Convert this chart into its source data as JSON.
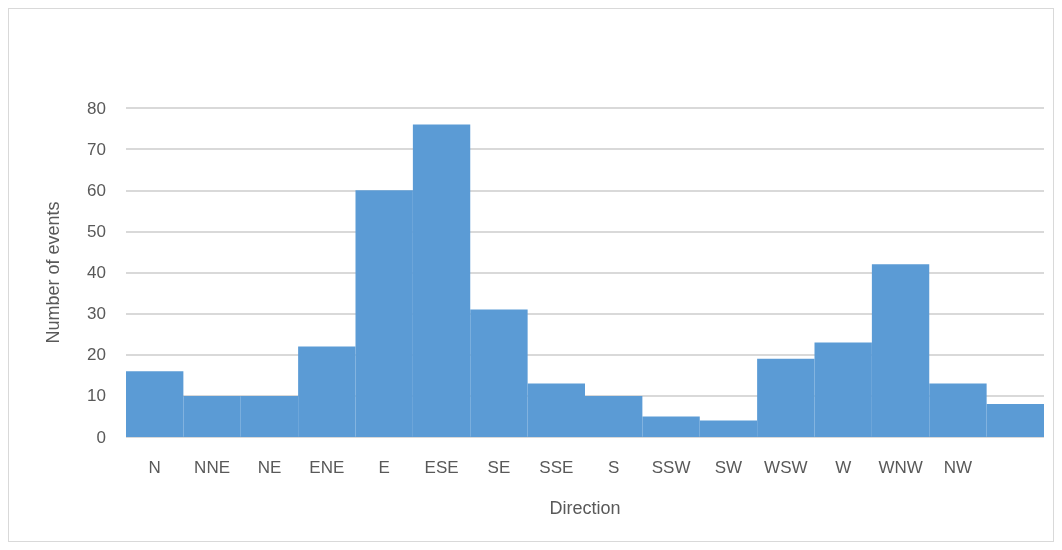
{
  "chart_data": {
    "type": "bar",
    "xlabel": "Direction",
    "ylabel": "Number of events",
    "categories": [
      "N",
      "NNE",
      "NE",
      "ENE",
      "E",
      "ESE",
      "SE",
      "SSE",
      "S",
      "SSW",
      "SW",
      "WSW",
      "W",
      "WNW",
      "NW",
      null
    ],
    "values": [
      16,
      10,
      10,
      22,
      60,
      76,
      31,
      13,
      10,
      5,
      4,
      19,
      23,
      42,
      13,
      8
    ],
    "color": "#5b9bd5",
    "ylim": [
      0,
      80
    ],
    "yticks": [
      0,
      10,
      20,
      30,
      40,
      50,
      60,
      70,
      80
    ],
    "grid": "y"
  }
}
